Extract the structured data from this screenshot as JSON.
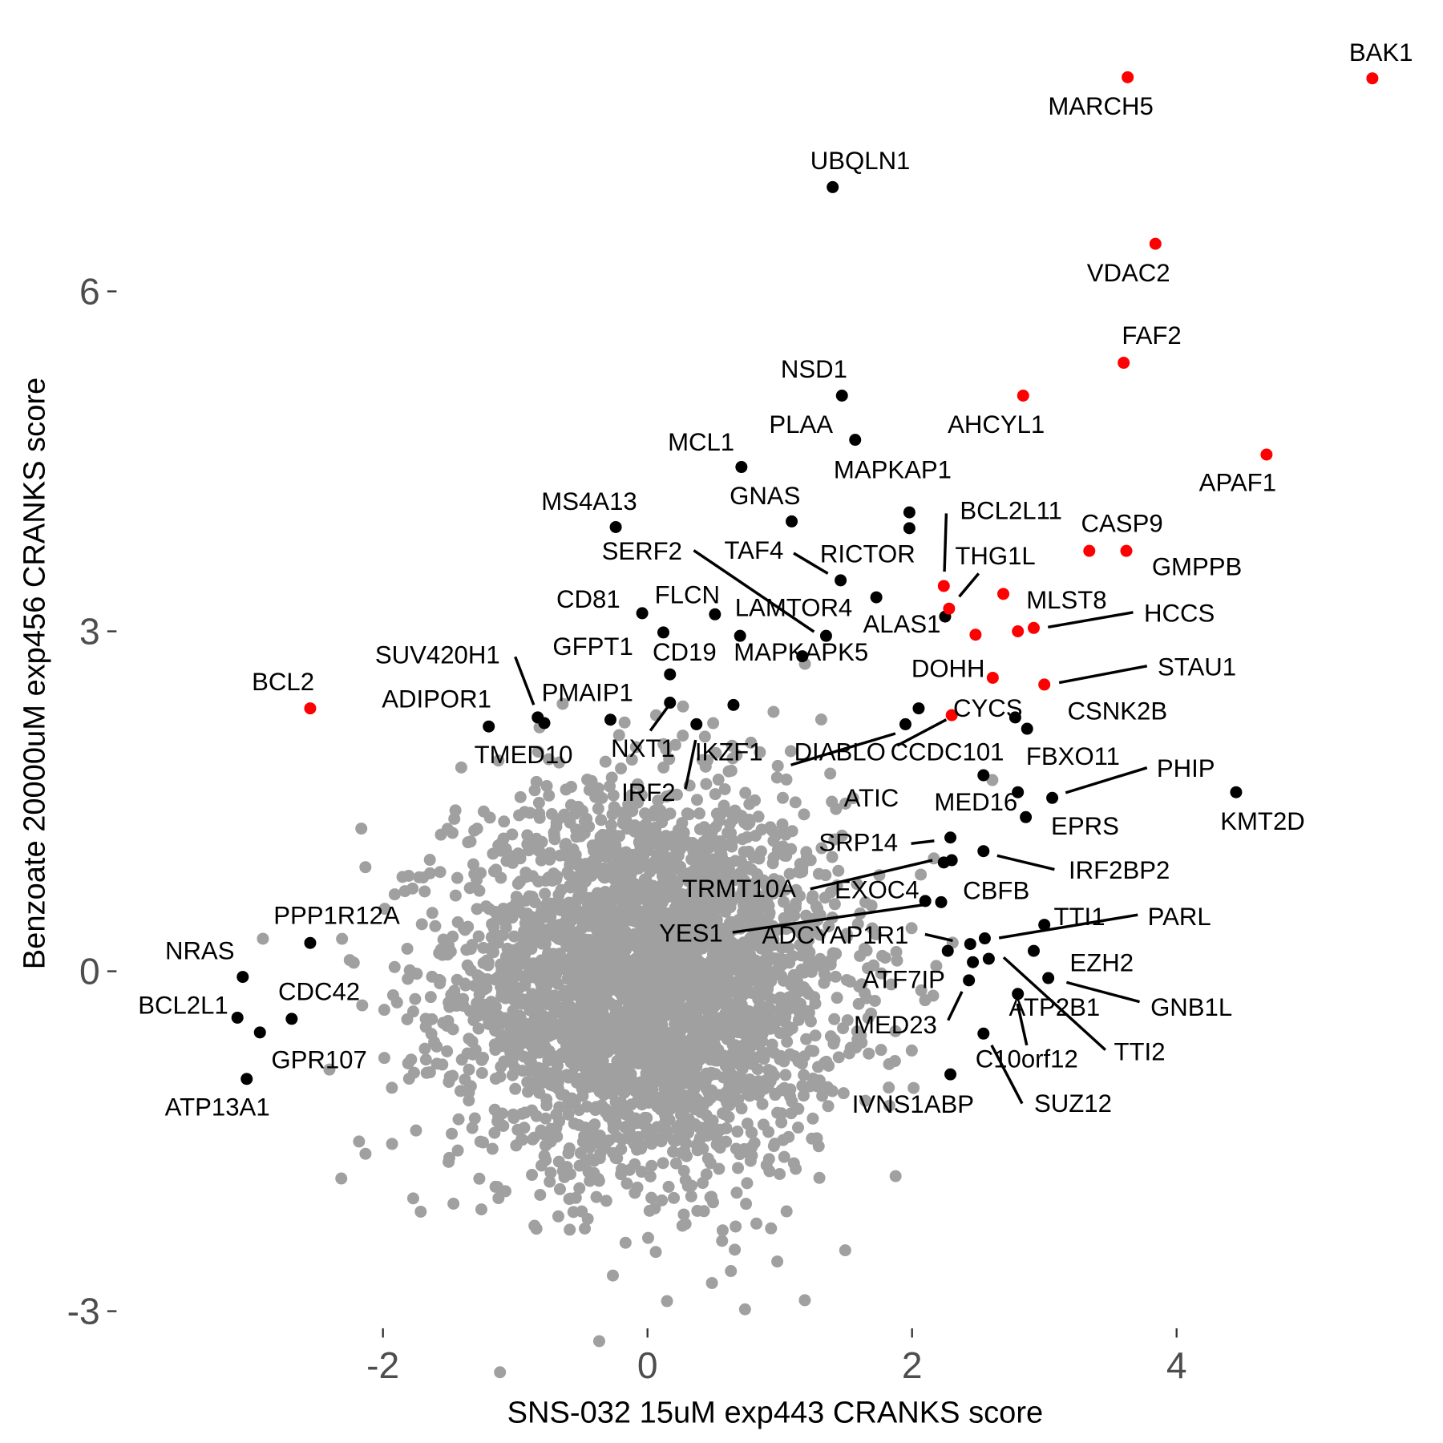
{
  "chart_data": {
    "type": "scatter",
    "title": "",
    "xlabel": "SNS-032 15uM exp443 CRANKS score",
    "ylabel": "Benzoate 20000uM exp456 CRANKS score",
    "xlim": [
      -3.9,
      5.7
    ],
    "ylim": [
      -3.1,
      8.4
    ],
    "x_ticks": [
      -2,
      0,
      2,
      4
    ],
    "y_ticks": [
      -3,
      0,
      3,
      6
    ],
    "grid": false,
    "legend": "none",
    "colors": {
      "background": "#A0A0A0",
      "highlight": "#FF0000",
      "labeled": "#000000"
    },
    "background_cloud": {
      "description_color": "#A0A0A0",
      "x_center": 0.0,
      "y_center": -0.1
    },
    "highlighted_points": [
      {
        "gene": "BAK1",
        "x": 5.48,
        "y": 7.88
      },
      {
        "gene": "MARCH5",
        "x": 3.63,
        "y": 7.89
      },
      {
        "gene": "VDAC2",
        "x": 3.84,
        "y": 6.42
      },
      {
        "gene": "FAF2",
        "x": 3.6,
        "y": 5.37
      },
      {
        "gene": "AHCYL1",
        "x": 2.84,
        "y": 5.08
      },
      {
        "gene": "APAF1",
        "x": 4.68,
        "y": 4.56
      },
      {
        "gene": "CASP9",
        "x": 3.34,
        "y": 3.71
      },
      {
        "gene": "GMPPB",
        "x": 3.62,
        "y": 3.71
      },
      {
        "gene": "BCL2L11",
        "x": 2.24,
        "y": 3.4
      },
      {
        "gene": "THG1L",
        "x": 2.28,
        "y": 3.2
      },
      {
        "gene": "MLST8",
        "x": 2.69,
        "y": 3.33
      },
      {
        "gene": "HCCS",
        "x": 2.92,
        "y": 3.03
      },
      {
        "gene": "",
        "x": 2.8,
        "y": 3.0
      },
      {
        "gene": "",
        "x": 2.48,
        "y": 2.97
      },
      {
        "gene": "DOHH",
        "x": 2.61,
        "y": 2.59
      },
      {
        "gene": "STAU1",
        "x": 3.0,
        "y": 2.53
      },
      {
        "gene": "CYCS",
        "x": 2.3,
        "y": 2.26
      },
      {
        "gene": "BCL2",
        "x": -2.55,
        "y": 2.32
      }
    ],
    "labeled_points": [
      {
        "gene": "UBQLN1",
        "x": 1.4,
        "y": 6.92
      },
      {
        "gene": "NSD1",
        "x": 1.47,
        "y": 5.08
      },
      {
        "gene": "PLAA",
        "x": 1.57,
        "y": 4.69
      },
      {
        "gene": "MCL1",
        "x": 0.71,
        "y": 4.45
      },
      {
        "gene": "GNAS",
        "x": 1.09,
        "y": 3.97
      },
      {
        "gene": "MS4A13",
        "x": -0.24,
        "y": 3.92
      },
      {
        "gene": "MAPKAP1",
        "x": 1.98,
        "y": 4.05
      },
      {
        "gene": "",
        "x": 1.98,
        "y": 3.91
      },
      {
        "gene": "RICTOR",
        "x": 1.46,
        "y": 3.45
      },
      {
        "gene": "TAF4",
        "x": 1.73,
        "y": 3.3
      },
      {
        "gene": "CD81",
        "x": -0.04,
        "y": 3.16
      },
      {
        "gene": "FLCN",
        "x": 0.51,
        "y": 3.15
      },
      {
        "gene": "LAMTOR4",
        "x": 0.7,
        "y": 2.96
      },
      {
        "gene": "SERF2",
        "x": 1.35,
        "y": 2.96
      },
      {
        "gene": "GFPT1",
        "x": 0.12,
        "y": 2.99
      },
      {
        "gene": "ALAS1",
        "x": 2.25,
        "y": 3.13
      },
      {
        "gene": "CD19",
        "x": 0.17,
        "y": 2.62
      },
      {
        "gene": "MAPKAPK5",
        "x": 1.17,
        "y": 2.78
      },
      {
        "gene": "SUV420H1",
        "x": -0.83,
        "y": 2.24
      },
      {
        "gene": "PMAIP1",
        "x": -0.78,
        "y": 2.19
      },
      {
        "gene": "ADIPOR1",
        "x": -1.2,
        "y": 2.16
      },
      {
        "gene": "TMED10",
        "x": -0.28,
        "y": 2.22
      },
      {
        "gene": "NXT1",
        "x": 0.17,
        "y": 2.37
      },
      {
        "gene": "IRF2",
        "x": 0.37,
        "y": 2.18
      },
      {
        "gene": "IKZF1",
        "x": 0.65,
        "y": 2.35
      },
      {
        "gene": "DIABLO",
        "x": 1.95,
        "y": 2.18
      },
      {
        "gene": "CCDC101",
        "x": 2.05,
        "y": 2.32
      },
      {
        "gene": "FBXO11",
        "x": 2.78,
        "y": 2.24
      },
      {
        "gene": "CSNK2B",
        "x": 2.87,
        "y": 2.14
      },
      {
        "gene": "PHIP",
        "x": 3.06,
        "y": 1.53
      },
      {
        "gene": "KMT2D",
        "x": 4.45,
        "y": 1.58
      },
      {
        "gene": "EPRS",
        "x": 2.86,
        "y": 1.36
      },
      {
        "gene": "MED16",
        "x": 2.8,
        "y": 1.58
      },
      {
        "gene": "ATIC",
        "x": 2.54,
        "y": 1.73
      },
      {
        "gene": "SRP14",
        "x": 2.29,
        "y": 1.18
      },
      {
        "gene": "IRF2BP2",
        "x": 2.54,
        "y": 1.06
      },
      {
        "gene": "TRMT10A",
        "x": 2.24,
        "y": 0.96
      },
      {
        "gene": "EXOC4",
        "x": 2.3,
        "y": 0.98
      },
      {
        "gene": "CBFB",
        "x": 2.22,
        "y": 0.61
      },
      {
        "gene": "YES1",
        "x": 2.1,
        "y": 0.62
      },
      {
        "gene": "TTI1",
        "x": 3.0,
        "y": 0.41
      },
      {
        "gene": "PARL",
        "x": 2.55,
        "y": 0.29
      },
      {
        "gene": "ADCYAP1R1",
        "x": 2.44,
        "y": 0.24
      },
      {
        "gene": "EZH2",
        "x": 2.92,
        "y": 0.18
      },
      {
        "gene": "ATF7IP",
        "x": 2.27,
        "y": 0.18
      },
      {
        "gene": "GNB1L",
        "x": 3.03,
        "y": -0.06
      },
      {
        "gene": "MED23",
        "x": 2.43,
        "y": -0.08
      },
      {
        "gene": "TTI2",
        "x": 2.58,
        "y": 0.11
      },
      {
        "gene": "SUZ12",
        "x": 2.46,
        "y": 0.08
      },
      {
        "gene": "ATP2B1",
        "x": 2.8,
        "y": -0.2
      },
      {
        "gene": "C10orf12",
        "x": 2.54,
        "y": -0.55
      },
      {
        "gene": "IVNS1ABP",
        "x": 2.29,
        "y": -0.91
      },
      {
        "gene": "PPP1R12A",
        "x": -2.55,
        "y": 0.25
      },
      {
        "gene": "NRAS",
        "x": -3.06,
        "y": -0.05
      },
      {
        "gene": "BCL2L1",
        "x": -3.1,
        "y": -0.41
      },
      {
        "gene": "CDC42",
        "x": -2.69,
        "y": -0.42
      },
      {
        "gene": "GPR107",
        "x": -2.93,
        "y": -0.54
      },
      {
        "gene": "ATP13A1",
        "x": -3.03,
        "y": -0.95
      }
    ]
  }
}
